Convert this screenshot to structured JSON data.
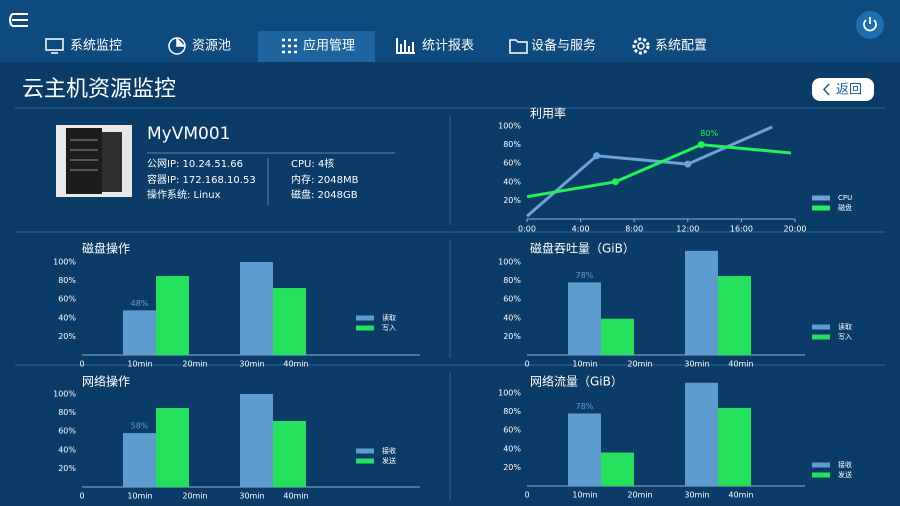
{
  "nav": {
    "items": [
      "系统监控",
      "资源池",
      "应用管理",
      "统计报表",
      "设备与服务",
      "系统配置"
    ]
  },
  "header": {
    "title": "云主机资源监控",
    "back": "返回"
  },
  "vm": {
    "name": "MyVM001",
    "left": [
      "公网IP: 10.24.51.66",
      "容器IP: 172.168.10.53",
      "操作系统: Linux"
    ],
    "right": [
      "CPU: 4核",
      "内存: 2048MB",
      "磁盘: 2048GB"
    ]
  },
  "chart_data": [
    {
      "type": "line",
      "title": "利用率",
      "xlim": [
        0,
        20
      ],
      "ylim": [
        0,
        100
      ],
      "xticks": [
        {
          "value": 0,
          "label": "0:00"
        },
        {
          "value": 4,
          "label": "4:00"
        },
        {
          "value": 8,
          "label": "8:00"
        },
        {
          "value": 12,
          "label": "12:00"
        },
        {
          "value": 16,
          "label": "16:00"
        },
        {
          "value": 20,
          "label": "20:00"
        }
      ],
      "yticks": [
        {
          "value": 20,
          "label": "20%"
        },
        {
          "value": 40,
          "label": "40%"
        },
        {
          "value": 60,
          "label": "60%"
        },
        {
          "value": 80,
          "label": "80%"
        },
        {
          "value": 100,
          "label": "100%"
        }
      ],
      "series": [
        {
          "name": "CPU",
          "color": "#6ea3d8",
          "x": [
            0,
            5.2,
            12,
            18.3
          ],
          "values": [
            3,
            68,
            59,
            99
          ]
        },
        {
          "name": "磁盘",
          "color": "#22f25a",
          "x": [
            0,
            6.6,
            13,
            19.7
          ],
          "values": [
            24,
            40,
            80,
            71
          ],
          "value_labels": [
            null,
            null,
            "80%",
            null
          ]
        }
      ]
    },
    {
      "type": "bar",
      "title": "磁盘操作",
      "ylim": [
        0,
        120
      ],
      "xticks": [
        0,
        "10min",
        "20min",
        "30min",
        "40min"
      ],
      "yticks": [
        {
          "value": 20,
          "label": "20%"
        },
        {
          "value": 40,
          "label": "40%"
        },
        {
          "value": 60,
          "label": "60%"
        },
        {
          "value": 80,
          "label": "80%"
        },
        {
          "value": 100,
          "label": "100%"
        }
      ],
      "series": [
        {
          "name": "读取",
          "color": "#5e9ccf",
          "values": [
            48,
            100
          ],
          "value_labels": [
            "48%",
            null
          ]
        },
        {
          "name": "写入",
          "color": "#24e05c",
          "values": [
            85,
            72
          ]
        }
      ]
    },
    {
      "type": "bar",
      "title": "磁盘吞吐量（GiB）",
      "ylim": [
        0,
        120
      ],
      "xticks": [
        0,
        "10min",
        "20min",
        "30min",
        "40min"
      ],
      "yticks": [
        {
          "value": 20,
          "label": "20%"
        },
        {
          "value": 40,
          "label": "40%"
        },
        {
          "value": 60,
          "label": "60%"
        },
        {
          "value": 80,
          "label": "80%"
        },
        {
          "value": 100,
          "label": "100%"
        }
      ],
      "series": [
        {
          "name": "读取",
          "color": "#5e9ccf",
          "values": [
            78,
            112
          ],
          "value_labels": [
            "78%",
            null
          ]
        },
        {
          "name": "写入",
          "color": "#24e05c",
          "values": [
            39,
            85
          ]
        }
      ]
    },
    {
      "type": "bar",
      "title": "网络操作",
      "ylim": [
        0,
        120
      ],
      "xticks": [
        0,
        "10min",
        "20min",
        "30min",
        "40min"
      ],
      "yticks": [
        {
          "value": 20,
          "label": "20%"
        },
        {
          "value": 40,
          "label": "40%"
        },
        {
          "value": 60,
          "label": "60%"
        },
        {
          "value": 80,
          "label": "80%"
        },
        {
          "value": 100,
          "label": "100%"
        }
      ],
      "series": [
        {
          "name": "接收",
          "color": "#5e9ccf",
          "values": [
            58,
            100
          ],
          "value_labels": [
            "58%",
            null
          ]
        },
        {
          "name": "发送",
          "color": "#24e05c",
          "values": [
            85,
            71
          ]
        }
      ]
    },
    {
      "type": "bar",
      "title": "网络流量（GiB）",
      "ylim": [
        0,
        120
      ],
      "xticks": [
        0,
        "10min",
        "20min",
        "30min",
        "40min"
      ],
      "yticks": [
        {
          "value": 20,
          "label": "20%"
        },
        {
          "value": 40,
          "label": "40%"
        },
        {
          "value": 60,
          "label": "60%"
        },
        {
          "value": 80,
          "label": "80%"
        },
        {
          "value": 100,
          "label": "100%"
        }
      ],
      "series": [
        {
          "name": "接收",
          "color": "#5e9ccf",
          "values": [
            78,
            111
          ],
          "value_labels": [
            "78%",
            null
          ]
        },
        {
          "name": "发送",
          "color": "#24e05c",
          "values": [
            36,
            84
          ]
        }
      ]
    }
  ]
}
